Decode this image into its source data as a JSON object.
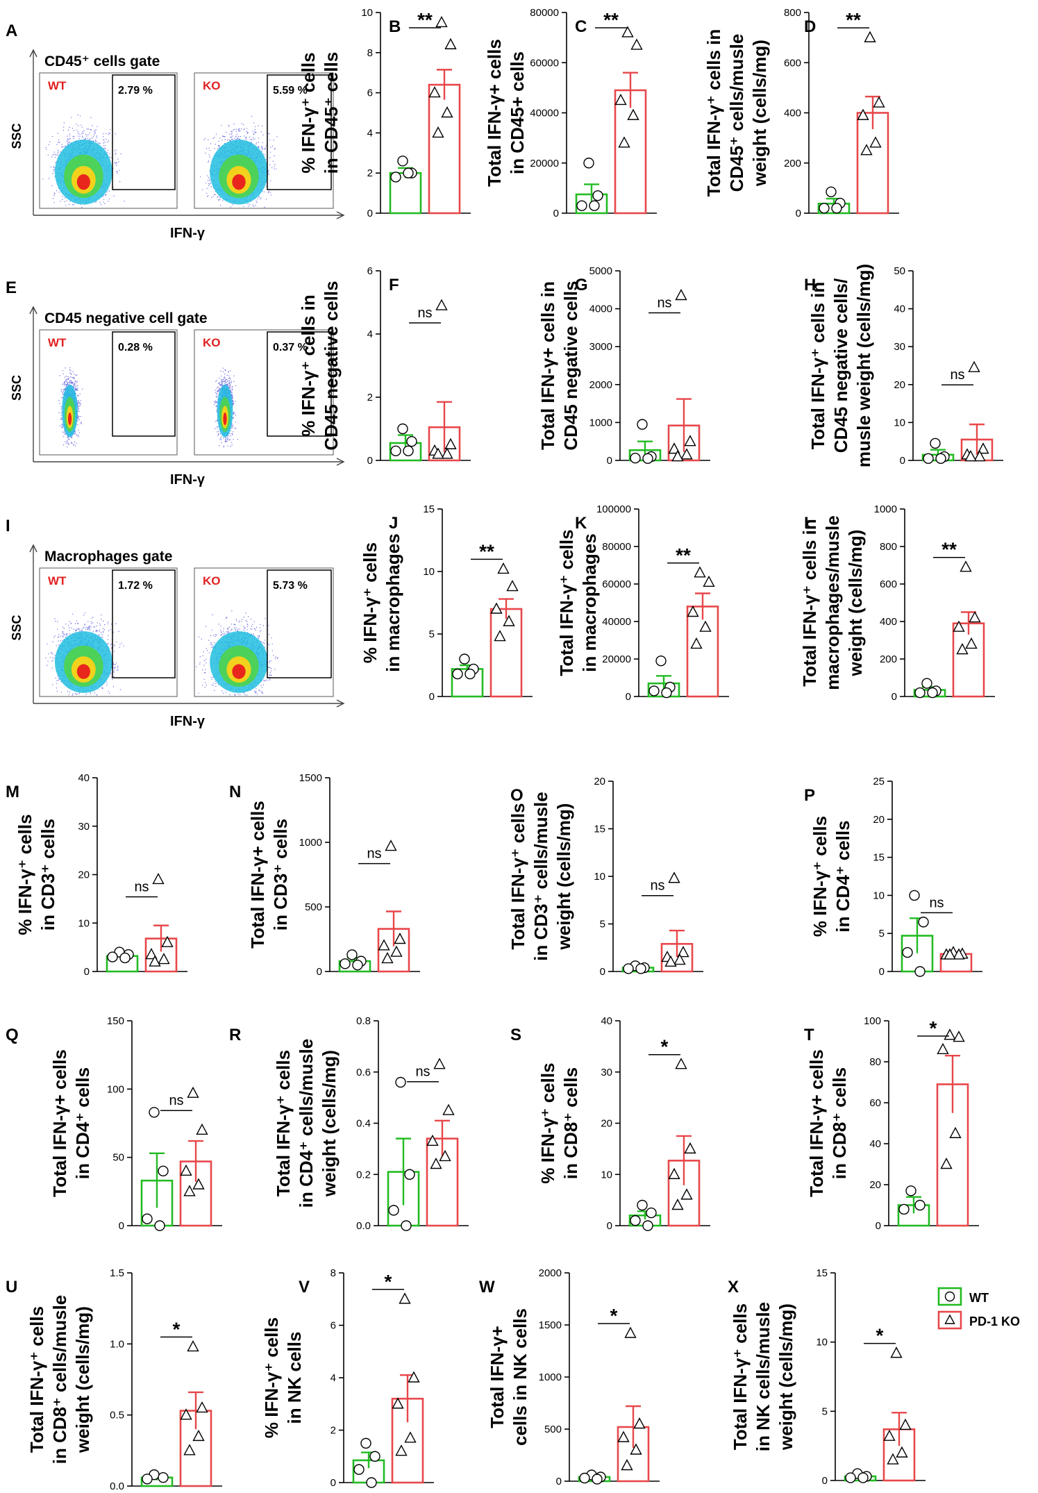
{
  "colors": {
    "wt": "#22bb22",
    "ko": "#e8474a",
    "axis": "#000000",
    "gate_label": "#e02020"
  },
  "legend": {
    "wt": "WT",
    "ko": "PD-1 KO"
  },
  "flow_panels": [
    {
      "letter": "A",
      "title": "CD45⁺ cells gate",
      "ylabel": "SSC",
      "xlabel": "IFN-γ",
      "wt_label": "WT",
      "ko_label": "KO",
      "wt_pct": "2.79 %",
      "ko_pct": "5.59 %",
      "shape": "wide"
    },
    {
      "letter": "E",
      "title": "CD45 negative cell gate",
      "ylabel": "SSC",
      "xlabel": "IFN-γ",
      "wt_label": "WT",
      "ko_label": "KO",
      "wt_pct": "0.28 %",
      "ko_pct": "0.37 %",
      "shape": "narrow"
    },
    {
      "letter": "I",
      "title": "Macrophages gate",
      "ylabel": "SSC",
      "xlabel": "IFN-γ",
      "wt_label": "WT",
      "ko_label": "KO",
      "wt_pct": "1.72 %",
      "ko_pct": "5.73 %",
      "shape": "wide"
    }
  ],
  "chart_data": [
    {
      "type": "bar",
      "letter": "B",
      "ylabel": [
        "% IFN-γ⁺ cells",
        "in CD45⁺ cells"
      ],
      "ylim": [
        0,
        10
      ],
      "ticks": [
        "0",
        "2",
        "4",
        "6",
        "8",
        "10"
      ],
      "tick_values": [
        0,
        2,
        4,
        6,
        8,
        10
      ],
      "sig": "**",
      "series": [
        {
          "name": "WT",
          "mean": 2.0,
          "sem": 0.25,
          "points": [
            2.6,
            2.0,
            1.8,
            2.0
          ]
        },
        {
          "name": "PD-1 KO",
          "mean": 6.4,
          "sem": 0.75,
          "points": [
            9.5,
            8.4,
            6.0,
            5.0,
            4.0
          ]
        }
      ]
    },
    {
      "type": "bar",
      "letter": "C",
      "ylabel": [
        "Total IFN-γ+ cells",
        "in CD45+ cells"
      ],
      "ylim": [
        0,
        80000
      ],
      "ticks": [
        "0",
        "20000",
        "40000",
        "60000",
        "80000"
      ],
      "tick_values": [
        0,
        20000,
        40000,
        60000,
        80000
      ],
      "sig": "**",
      "series": [
        {
          "name": "WT",
          "mean": 7500,
          "sem": 4000,
          "points": [
            20000,
            7000,
            3000,
            3000
          ]
        },
        {
          "name": "PD-1 KO",
          "mean": 49000,
          "sem": 7000,
          "points": [
            72000,
            67000,
            45000,
            39000,
            28000
          ]
        }
      ]
    },
    {
      "type": "bar",
      "letter": "D",
      "ylabel": [
        "Total IFN-γ⁺ cells in",
        "CD45⁺ cells/musle",
        "weight (cells/mg)"
      ],
      "ylim": [
        0,
        800
      ],
      "ticks": [
        "0",
        "200",
        "400",
        "600",
        "800"
      ],
      "tick_values": [
        0,
        200,
        400,
        600,
        800
      ],
      "sig": "**",
      "series": [
        {
          "name": "WT",
          "mean": 38,
          "sem": 20,
          "points": [
            85,
            40,
            20,
            20
          ]
        },
        {
          "name": "PD-1 KO",
          "mean": 400,
          "sem": 65,
          "points": [
            700,
            440,
            390,
            280,
            250
          ]
        }
      ]
    },
    {
      "type": "bar",
      "letter": "F",
      "ylabel": [
        "% IFN-γ⁺ cells in",
        "CD45 negative cells"
      ],
      "ylim": [
        0,
        6
      ],
      "ticks": [
        "0",
        "2",
        "4",
        "6"
      ],
      "tick_values": [
        0,
        2,
        4,
        6
      ],
      "sig": "ns",
      "series": [
        {
          "name": "WT",
          "mean": 0.55,
          "sem": 0.25,
          "points": [
            1.0,
            0.6,
            0.3,
            0.3
          ]
        },
        {
          "name": "PD-1 KO",
          "mean": 1.05,
          "sem": 0.8,
          "points": [
            4.9,
            0.5,
            0.3,
            0.2,
            0.2
          ]
        }
      ]
    },
    {
      "type": "bar",
      "letter": "G",
      "ylabel": [
        "Total IFN-γ+ cells in",
        "CD45 negative cells"
      ],
      "ylim": [
        0,
        5000
      ],
      "ticks": [
        "0",
        "1000",
        "2000",
        "3000",
        "4000",
        "5000"
      ],
      "tick_values": [
        0,
        1000,
        2000,
        3000,
        4000,
        5000
      ],
      "sig": "ns",
      "series": [
        {
          "name": "WT",
          "mean": 270,
          "sem": 230,
          "points": [
            950,
            100,
            60,
            50
          ]
        },
        {
          "name": "PD-1 KO",
          "mean": 920,
          "sem": 700,
          "points": [
            4350,
            500,
            300,
            150,
            100
          ]
        }
      ]
    },
    {
      "type": "bar",
      "letter": "H",
      "ylabel": [
        "Total IFN-γ⁺ cells in",
        "CD45 negative cells/",
        "musle weight (cells/mg)"
      ],
      "ylim": [
        0,
        50
      ],
      "ticks": [
        "0",
        "10",
        "20",
        "30",
        "40",
        "50"
      ],
      "tick_values": [
        0,
        10,
        20,
        30,
        40,
        50
      ],
      "sig": "ns",
      "series": [
        {
          "name": "WT",
          "mean": 1.5,
          "sem": 1.3,
          "points": [
            4.5,
            1.0,
            0.5,
            0.5
          ]
        },
        {
          "name": "PD-1 KO",
          "mean": 5.5,
          "sem": 4.0,
          "points": [
            24.5,
            3.0,
            1.5,
            1.0,
            1.0
          ]
        }
      ]
    },
    {
      "type": "bar",
      "letter": "J",
      "ylabel": [
        "% IFN-γ⁺ cells",
        "in macrophages"
      ],
      "ylim": [
        0,
        15
      ],
      "ticks": [
        "0",
        "5",
        "10",
        "15"
      ],
      "tick_values": [
        0,
        5,
        10,
        15
      ],
      "sig": "**",
      "series": [
        {
          "name": "WT",
          "mean": 2.2,
          "sem": 0.3,
          "points": [
            3.0,
            2.2,
            1.8,
            1.8
          ]
        },
        {
          "name": "PD-1 KO",
          "mean": 7.0,
          "sem": 0.8,
          "points": [
            10.2,
            8.8,
            7.0,
            6.0,
            4.8
          ]
        }
      ]
    },
    {
      "type": "bar",
      "letter": "K",
      "ylabel": [
        "Total IFN-γ⁺ cells",
        "in macrophages"
      ],
      "ylim": [
        0,
        100000
      ],
      "ticks": [
        "0",
        "20000",
        "40000",
        "60000",
        "80000",
        "100000"
      ],
      "tick_values": [
        0,
        20000,
        40000,
        60000,
        80000,
        100000
      ],
      "sig": "**",
      "series": [
        {
          "name": "WT",
          "mean": 7000,
          "sem": 4000,
          "points": [
            19000,
            5000,
            3000,
            2000
          ]
        },
        {
          "name": "PD-1 KO",
          "mean": 48000,
          "sem": 7000,
          "points": [
            66000,
            61000,
            45000,
            37000,
            28000
          ]
        }
      ]
    },
    {
      "type": "bar",
      "letter": "L",
      "ylabel": [
        "Total IFN-γ⁺ cells in",
        "macrophages/musle",
        "weight (cells/mg)"
      ],
      "ylim": [
        0,
        1000
      ],
      "ticks": [
        "0",
        "200",
        "400",
        "600",
        "800",
        "1000"
      ],
      "tick_values": [
        0,
        200,
        400,
        600,
        800,
        1000
      ],
      "sig": "**",
      "series": [
        {
          "name": "WT",
          "mean": 35,
          "sem": 15,
          "points": [
            70,
            30,
            20,
            20
          ]
        },
        {
          "name": "PD-1 KO",
          "mean": 390,
          "sem": 60,
          "points": [
            690,
            420,
            370,
            280,
            250
          ]
        }
      ]
    },
    {
      "type": "bar",
      "letter": "M",
      "ylabel": [
        "% IFN-γ⁺ cells",
        "in CD3⁺ cells"
      ],
      "ylim": [
        0,
        40
      ],
      "ticks": [
        "0",
        "10",
        "20",
        "30",
        "40"
      ],
      "tick_values": [
        0,
        10,
        20,
        30,
        40
      ],
      "sig": "ns",
      "series": [
        {
          "name": "WT",
          "mean": 3.2,
          "sem": 0.5,
          "points": [
            4.0,
            3.5,
            3.0,
            2.8
          ]
        },
        {
          "name": "PD-1 KO",
          "mean": 6.8,
          "sem": 2.7,
          "points": [
            19.0,
            6.0,
            3.5,
            2.5,
            2.0
          ]
        }
      ]
    },
    {
      "type": "bar",
      "letter": "N",
      "ylabel": [
        "Total IFN-γ+ cells",
        "in CD3⁺ cells"
      ],
      "ylim": [
        0,
        1500
      ],
      "ticks": [
        "0",
        "500",
        "1000",
        "1500"
      ],
      "tick_values": [
        0,
        500,
        1000,
        1500
      ],
      "sig": "ns",
      "series": [
        {
          "name": "WT",
          "mean": 80,
          "sem": 25,
          "points": [
            130,
            80,
            60,
            50
          ]
        },
        {
          "name": "PD-1 KO",
          "mean": 330,
          "sem": 135,
          "points": [
            970,
            250,
            200,
            150,
            100
          ]
        }
      ]
    },
    {
      "type": "bar",
      "letter": "O",
      "ylabel": [
        "Total IFN-γ⁺ cells",
        "in CD3⁺ cells/musle",
        "weight (cells/mg)"
      ],
      "ylim": [
        0,
        20
      ],
      "ticks": [
        "0",
        "5",
        "10",
        "15",
        "20"
      ],
      "tick_values": [
        0,
        5,
        10,
        15,
        20
      ],
      "sig": "ns",
      "series": [
        {
          "name": "WT",
          "mean": 0.4,
          "sem": 0.1,
          "points": [
            0.6,
            0.4,
            0.3,
            0.3
          ]
        },
        {
          "name": "PD-1 KO",
          "mean": 2.9,
          "sem": 1.4,
          "points": [
            9.8,
            2.0,
            1.5,
            1.2,
            1.0
          ]
        }
      ]
    },
    {
      "type": "bar",
      "letter": "P",
      "ylabel": [
        "% IFN-γ⁺ cells",
        "in CD4⁺ cells"
      ],
      "ylim": [
        0,
        25
      ],
      "ticks": [
        "0",
        "5",
        "10",
        "15",
        "20",
        "25"
      ],
      "tick_values": [
        0,
        5,
        10,
        15,
        20,
        25
      ],
      "sig": "ns",
      "series": [
        {
          "name": "WT",
          "mean": 4.7,
          "sem": 2.3,
          "points": [
            10.0,
            6.5,
            2.5,
            0.0
          ]
        },
        {
          "name": "PD-1 KO",
          "mean": 2.3,
          "sem": 0.25,
          "points": [
            2.5,
            2.3,
            2.2,
            2.2,
            2.2
          ]
        }
      ]
    },
    {
      "type": "bar",
      "letter": "Q",
      "ylabel": [
        "Total IFN-γ+ cells",
        "in CD4⁺ cells"
      ],
      "ylim": [
        0,
        150
      ],
      "ticks": [
        "0",
        "50",
        "100",
        "150"
      ],
      "tick_values": [
        0,
        50,
        100,
        150
      ],
      "sig": "ns",
      "series": [
        {
          "name": "WT",
          "mean": 33,
          "sem": 20,
          "points": [
            83,
            40,
            5,
            0
          ]
        },
        {
          "name": "PD-1 KO",
          "mean": 47,
          "sem": 15,
          "points": [
            97,
            70,
            40,
            30,
            25
          ]
        }
      ]
    },
    {
      "type": "bar",
      "letter": "R",
      "ylabel": [
        "Total IFN-γ⁺ cells",
        "in CD4⁺ cells/musle",
        "weight (cells/mg)"
      ],
      "ylim": [
        0,
        0.8
      ],
      "ticks": [
        "0.0",
        "0.2",
        "0.4",
        "0.6",
        "0.8"
      ],
      "tick_values": [
        0,
        0.2,
        0.4,
        0.6,
        0.8
      ],
      "sig": "ns",
      "series": [
        {
          "name": "WT",
          "mean": 0.21,
          "sem": 0.13,
          "points": [
            0.56,
            0.2,
            0.06,
            0.0
          ]
        },
        {
          "name": "PD-1 KO",
          "mean": 0.34,
          "sem": 0.07,
          "points": [
            0.63,
            0.45,
            0.33,
            0.27,
            0.24
          ]
        }
      ]
    },
    {
      "type": "bar",
      "letter": "S",
      "ylabel": [
        "% IFN-γ⁺ cells",
        "in CD8⁺ cells"
      ],
      "ylim": [
        0,
        40
      ],
      "ticks": [
        "0",
        "10",
        "20",
        "30",
        "40"
      ],
      "tick_values": [
        0,
        10,
        20,
        30,
        40
      ],
      "sig": "*",
      "series": [
        {
          "name": "WT",
          "mean": 2.0,
          "sem": 0.8,
          "points": [
            4.0,
            2.5,
            1.0,
            0.0
          ]
        },
        {
          "name": "PD-1 KO",
          "mean": 12.7,
          "sem": 4.8,
          "points": [
            31.5,
            15.0,
            10.0,
            6.0,
            4.0
          ]
        }
      ]
    },
    {
      "type": "bar",
      "letter": "T",
      "ylabel": [
        "Total IFN-γ+ cells",
        "in CD8⁺ cells"
      ],
      "ylim": [
        0,
        100
      ],
      "ticks": [
        "0",
        "20",
        "40",
        "60",
        "80",
        "100"
      ],
      "tick_values": [
        0,
        20,
        40,
        60,
        80,
        100
      ],
      "sig": "*",
      "series": [
        {
          "name": "WT",
          "mean": 10,
          "sem": 4,
          "points": [
            17,
            10,
            8
          ]
        },
        {
          "name": "PD-1 KO",
          "mean": 69,
          "sem": 14,
          "points": [
            93,
            92,
            86,
            45,
            30
          ]
        }
      ]
    },
    {
      "type": "bar",
      "letter": "U",
      "ylabel": [
        "Total IFN-γ⁺ cells",
        "in CD8⁺ cells/musle",
        "weight (cells/mg)"
      ],
      "ylim": [
        0,
        1.5
      ],
      "ticks": [
        "0.0",
        "0.5",
        "1.0",
        "1.5"
      ],
      "tick_values": [
        0,
        0.5,
        1.0,
        1.5
      ],
      "sig": "*",
      "series": [
        {
          "name": "WT",
          "mean": 0.06,
          "sem": 0.02,
          "points": [
            0.08,
            0.06,
            0.05
          ]
        },
        {
          "name": "PD-1 KO",
          "mean": 0.53,
          "sem": 0.13,
          "points": [
            0.98,
            0.55,
            0.5,
            0.35,
            0.25
          ]
        }
      ]
    },
    {
      "type": "bar",
      "letter": "V",
      "ylabel": [
        "% IFN-γ⁺ cells",
        "in NK cells"
      ],
      "ylim": [
        0,
        8
      ],
      "ticks": [
        "0",
        "2",
        "4",
        "6",
        "8"
      ],
      "tick_values": [
        0,
        2,
        4,
        6,
        8
      ],
      "sig": "*",
      "series": [
        {
          "name": "WT",
          "mean": 0.85,
          "sem": 0.3,
          "points": [
            1.5,
            1.0,
            0.5,
            0.0
          ]
        },
        {
          "name": "PD-1 KO",
          "mean": 3.2,
          "sem": 0.9,
          "points": [
            7.0,
            4.0,
            3.0,
            1.7,
            1.2
          ]
        }
      ]
    },
    {
      "type": "bar",
      "letter": "W",
      "ylabel": [
        "Total IFN-γ+",
        "cells in NK cells"
      ],
      "ylim": [
        0,
        2000
      ],
      "ticks": [
        "0",
        "500",
        "1000",
        "1500",
        "2000"
      ],
      "tick_values": [
        0,
        500,
        1000,
        1500,
        2000
      ],
      "sig": "*",
      "series": [
        {
          "name": "WT",
          "mean": 40,
          "sem": 15,
          "points": [
            60,
            40,
            30,
            20
          ]
        },
        {
          "name": "PD-1 KO",
          "mean": 520,
          "sem": 200,
          "points": [
            1420,
            550,
            420,
            300,
            150
          ]
        }
      ]
    },
    {
      "type": "bar",
      "letter": "X",
      "ylabel": [
        "Total IFN-γ⁺ cells",
        "in NK cells/musle",
        "weight (cells/mg)"
      ],
      "ylim": [
        0,
        15
      ],
      "ticks": [
        "0",
        "5",
        "10",
        "15"
      ],
      "tick_values": [
        0,
        5,
        10,
        15
      ],
      "sig": "*",
      "series": [
        {
          "name": "WT",
          "mean": 0.3,
          "sem": 0.1,
          "points": [
            0.5,
            0.3,
            0.2,
            0.2
          ]
        },
        {
          "name": "PD-1 KO",
          "mean": 3.7,
          "sem": 1.2,
          "points": [
            9.2,
            4.0,
            3.2,
            2.0,
            1.5
          ]
        }
      ]
    }
  ]
}
